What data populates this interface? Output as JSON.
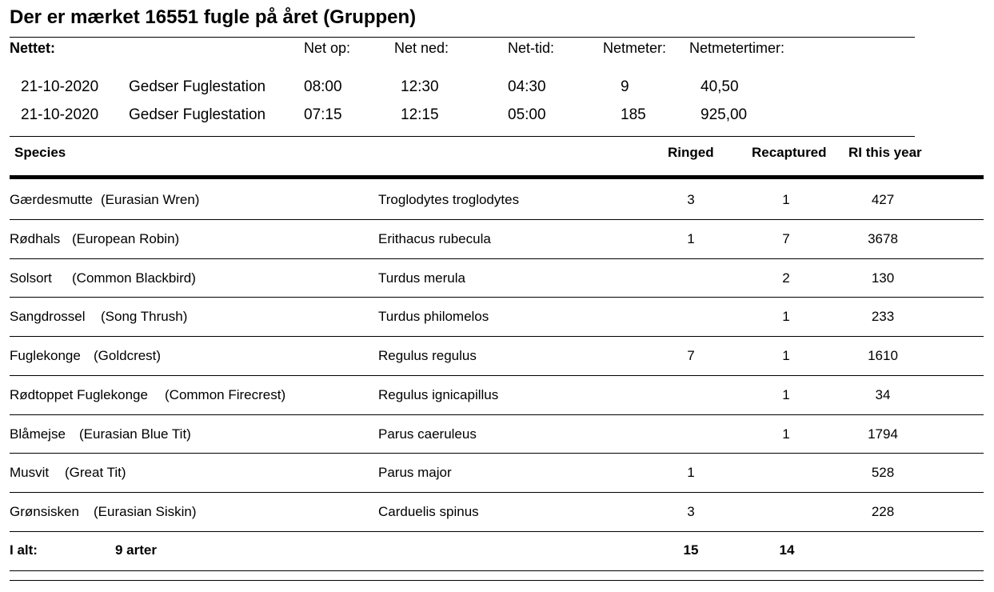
{
  "title": "Der er mærket 16551 fugle på året (Gruppen)",
  "net_section": {
    "label": "Nettet:",
    "headers": [
      "Net op:",
      "Net ned:",
      "Net-tid:",
      "Netmeter:",
      "Netmetertimer:"
    ],
    "rows": [
      {
        "date": "21-10-2020",
        "station": "Gedser Fuglestation",
        "net_op": "08:00",
        "net_ned": "12:30",
        "net_tid": "04:30",
        "netmeter": "9",
        "netmetertimer": "40,50"
      },
      {
        "date": "21-10-2020",
        "station": "Gedser Fuglestation",
        "net_op": "07:15",
        "net_ned": "12:15",
        "net_tid": "05:00",
        "netmeter": "185",
        "netmetertimer": "925,00"
      }
    ]
  },
  "species_table": {
    "headers": {
      "species": "Species",
      "ringed": "Ringed",
      "recaptured": "Recaptured",
      "ri": "RI this year"
    },
    "rows": [
      {
        "danish": "Gærdesmutte",
        "english": "(Eurasian Wren)",
        "latin": "Troglodytes troglodytes",
        "ringed": "3",
        "recaptured": "1",
        "ri": "427"
      },
      {
        "danish": "Rødhals",
        "english": "(European Robin)",
        "latin": "Erithacus rubecula",
        "ringed": "1",
        "recaptured": "7",
        "ri": "3678"
      },
      {
        "danish": "Solsort",
        "english": "(Common Blackbird)",
        "latin": "Turdus merula",
        "ringed": "",
        "recaptured": "2",
        "ri": "130"
      },
      {
        "danish": "Sangdrossel",
        "english": "(Song Thrush)",
        "latin": "Turdus philomelos",
        "ringed": "",
        "recaptured": "1",
        "ri": "233"
      },
      {
        "danish": "Fuglekonge",
        "english": "(Goldcrest)",
        "latin": "Regulus regulus",
        "ringed": "7",
        "recaptured": "1",
        "ri": "1610"
      },
      {
        "danish": "Rødtoppet Fuglekonge",
        "english": "(Common Firecrest)",
        "latin": "Regulus ignicapillus",
        "ringed": "",
        "recaptured": "1",
        "ri": "34"
      },
      {
        "danish": "Blåmejse",
        "english": "(Eurasian Blue Tit)",
        "latin": "Parus caeruleus",
        "ringed": "",
        "recaptured": "1",
        "ri": "1794"
      },
      {
        "danish": "Musvit",
        "english": "(Great Tit)",
        "latin": "Parus major",
        "ringed": "1",
        "recaptured": "",
        "ri": "528"
      },
      {
        "danish": "Grønsisken",
        "english": "(Eurasian Siskin)",
        "latin": "Carduelis spinus",
        "ringed": "3",
        "recaptured": "",
        "ri": "228"
      }
    ],
    "totals": {
      "label": "I alt:",
      "species_count": "9 arter",
      "ringed": "15",
      "recaptured": "14"
    }
  }
}
